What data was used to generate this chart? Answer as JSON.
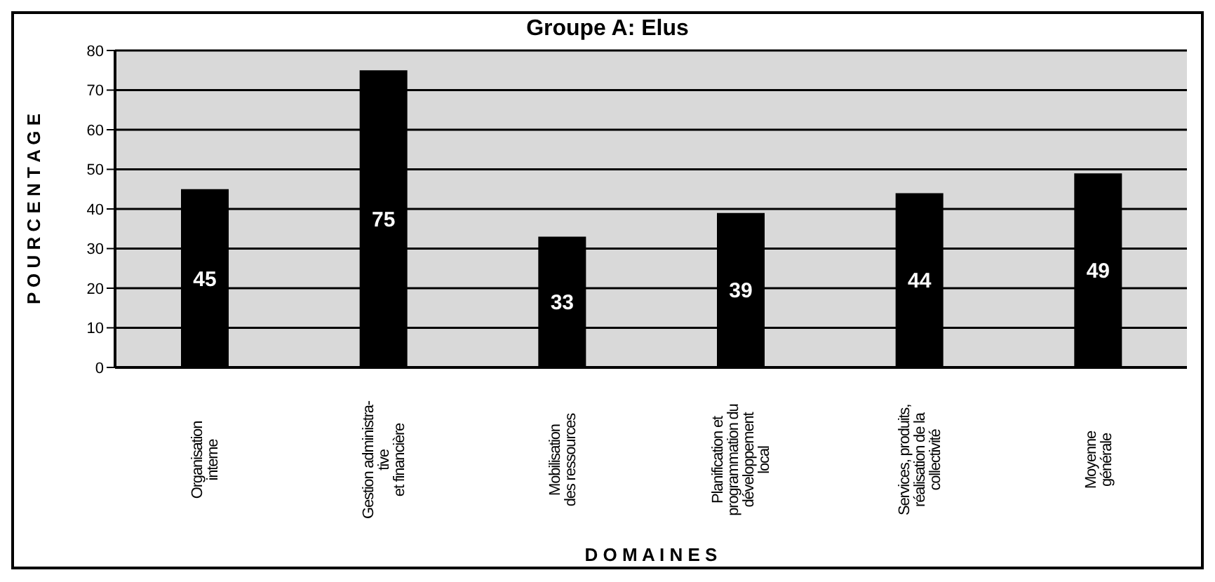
{
  "chart_data": {
    "type": "bar",
    "title": "Groupe A: Elus",
    "xlabel": "D O M A I N E S",
    "ylabel": "P O U R C E N T A G E",
    "categories": [
      "Organisation\ninterne",
      "Gestion administra-\ntive\net financière",
      "Mobilisation\ndes ressources",
      "Planification et\nprogrammation du\ndéveloppement\nlocal",
      "Services, produits,\nréalisation de la\ncollectivité",
      "Moyenne\ngénérale"
    ],
    "values": [
      45,
      75,
      33,
      39,
      44,
      49
    ],
    "color": "#000000",
    "ylim": [
      0,
      80
    ],
    "yticks": [
      0,
      10,
      20,
      30,
      40,
      50,
      60,
      70,
      80
    ],
    "grid": "y",
    "data_labels": true
  }
}
